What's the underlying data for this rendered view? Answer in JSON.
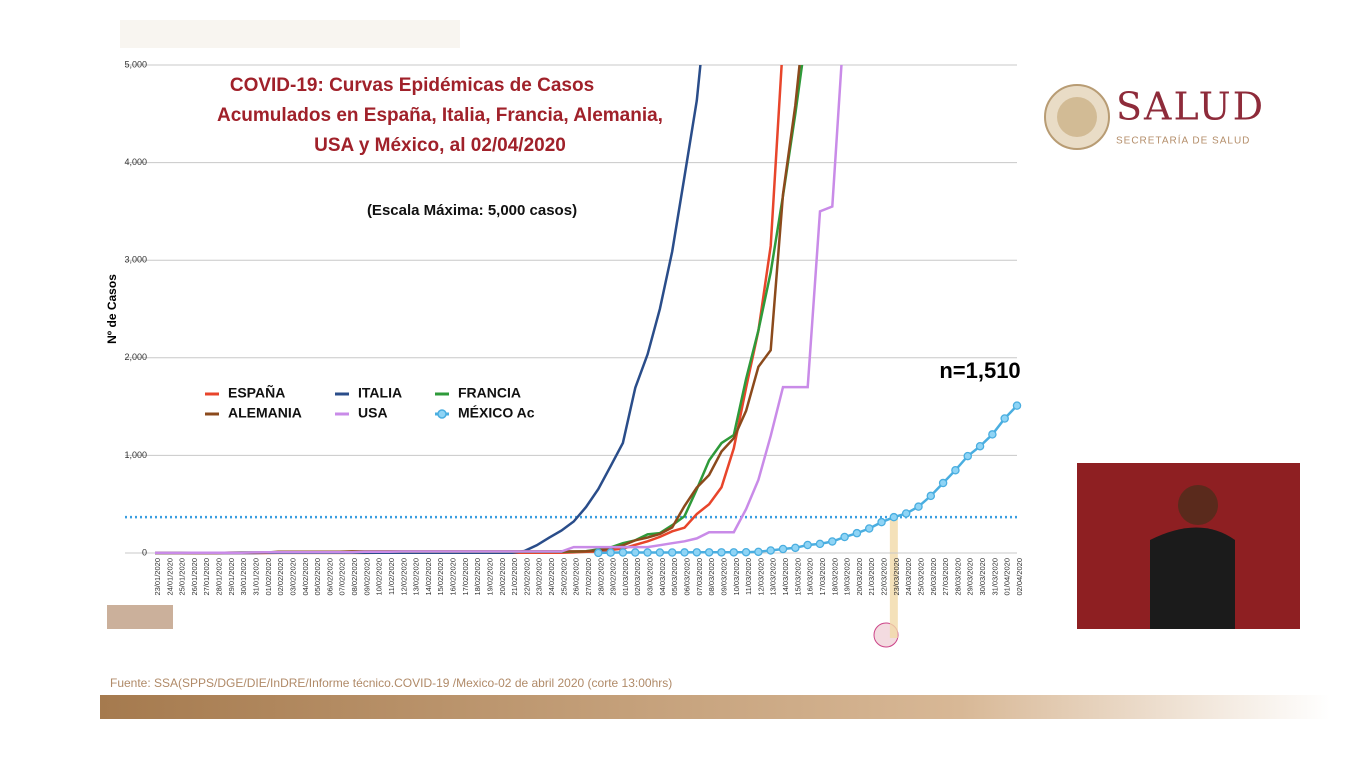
{
  "header": {
    "logo_title": "SALUD",
    "logo_subtitle": "SECRETARÍA DE SALUD"
  },
  "source": "Fuente: SSA(SPPS/DGE/DIE/InDRE/Informe técnico.COVID-19 /Mexico-02 de abril 2020 (corte 13:00hrs)",
  "chart_data": {
    "type": "line",
    "title": [
      "COVID-19: Curvas Epidémicas de Casos",
      "Acumulados en España, Italia, Francia, Alemania,",
      "USA y México, al 02/04/2020"
    ],
    "subtitle": "(Escala Máxima: 5,000 casos)",
    "y_label": "Nº de Casos",
    "annotation": "n=1,510",
    "highlight": "23/03/2020",
    "reference_line": 367,
    "categories": [
      "23/01/2020",
      "24/01/2020",
      "25/01/2020",
      "26/01/2020",
      "27/01/2020",
      "28/01/2020",
      "29/01/2020",
      "30/01/2020",
      "31/01/2020",
      "01/02/2020",
      "02/02/2020",
      "03/02/2020",
      "04/02/2020",
      "05/02/2020",
      "06/02/2020",
      "07/02/2020",
      "08/02/2020",
      "09/02/2020",
      "10/02/2020",
      "11/02/2020",
      "12/02/2020",
      "13/02/2020",
      "14/02/2020",
      "15/02/2020",
      "16/02/2020",
      "17/02/2020",
      "18/02/2020",
      "19/02/2020",
      "20/02/2020",
      "21/02/2020",
      "22/02/2020",
      "23/02/2020",
      "24/02/2020",
      "25/02/2020",
      "26/02/2020",
      "27/02/2020",
      "28/02/2020",
      "29/02/2020",
      "01/03/2020",
      "02/03/2020",
      "03/03/2020",
      "04/03/2020",
      "05/03/2020",
      "06/03/2020",
      "07/03/2020",
      "08/03/2020",
      "09/03/2020",
      "10/03/2020",
      "11/03/2020",
      "12/03/2020",
      "13/03/2020",
      "14/03/2020",
      "15/03/2020",
      "16/03/2020",
      "17/03/2020",
      "18/03/2020",
      "19/03/2020",
      "20/03/2020",
      "21/03/2020",
      "22/03/2020",
      "23/03/2020",
      "24/03/2020",
      "25/03/2020",
      "26/03/2020",
      "27/03/2020",
      "28/03/2020",
      "29/03/2020",
      "30/03/2020",
      "31/03/2020",
      "01/04/2020",
      "02/04/2020"
    ],
    "series": [
      {
        "name": "ESPAÑA",
        "color": "#e8452b",
        "values": [
          0,
          0,
          0,
          0,
          0,
          0,
          0,
          0,
          0,
          0,
          1,
          1,
          1,
          1,
          1,
          1,
          1,
          1,
          2,
          2,
          2,
          2,
          2,
          2,
          2,
          2,
          2,
          2,
          2,
          2,
          2,
          2,
          2,
          3,
          6,
          13,
          15,
          32,
          45,
          84,
          120,
          165,
          222,
          259,
          400,
          500,
          673,
          1073,
          1695,
          2277,
          3146,
          5232,
          null,
          null,
          null,
          null,
          null,
          null,
          null,
          null,
          null,
          null,
          null,
          null,
          null,
          null,
          null,
          null,
          null,
          null,
          null
        ]
      },
      {
        "name": "ITALIA",
        "color": "#2a4d8a",
        "values": [
          0,
          0,
          0,
          0,
          0,
          0,
          0,
          0,
          0,
          2,
          2,
          2,
          2,
          2,
          2,
          3,
          3,
          3,
          3,
          3,
          3,
          3,
          3,
          3,
          3,
          3,
          3,
          3,
          3,
          3,
          20,
          79,
          157,
          229,
          323,
          470,
          655,
          889,
          1128,
          1694,
          2036,
          2502,
          3089,
          3858,
          4636,
          5883,
          null,
          null,
          null,
          null,
          null,
          null,
          null,
          null,
          null,
          null,
          null,
          null,
          null,
          null,
          null,
          null,
          null,
          null,
          null,
          null,
          null,
          null,
          null,
          null,
          null
        ]
      },
      {
        "name": "FRANCIA",
        "color": "#2e9a3a",
        "values": [
          0,
          0,
          3,
          3,
          3,
          3,
          3,
          5,
          5,
          6,
          6,
          6,
          6,
          6,
          6,
          6,
          6,
          12,
          12,
          12,
          12,
          12,
          12,
          12,
          12,
          12,
          12,
          12,
          12,
          12,
          12,
          12,
          12,
          12,
          14,
          18,
          38,
          57,
          100,
          130,
          191,
          204,
          285,
          377,
          653,
          949,
          1126,
          1209,
          1784,
          2281,
          2876,
          3661,
          4499,
          5423,
          null,
          null,
          null,
          null,
          null,
          null,
          null,
          null,
          null,
          null,
          null,
          null,
          null,
          null,
          null,
          null,
          null
        ]
      },
      {
        "name": "ALEMANIA",
        "color": "#8b4a1c",
        "values": [
          0,
          0,
          0,
          0,
          0,
          0,
          4,
          4,
          4,
          4,
          12,
          12,
          12,
          12,
          12,
          12,
          16,
          16,
          16,
          16,
          16,
          16,
          16,
          16,
          16,
          16,
          16,
          16,
          16,
          16,
          16,
          16,
          16,
          16,
          16,
          18,
          26,
          48,
          79,
          130,
          159,
          196,
          262,
          482,
          670,
          799,
          1040,
          1176,
          1457,
          1908,
          2078,
          3675,
          4585,
          5795,
          null,
          null,
          null,
          null,
          null,
          null,
          null,
          null,
          null,
          null,
          null,
          null,
          null,
          null,
          null,
          null,
          null
        ]
      },
      {
        "name": "USA",
        "color": "#c98be8",
        "values": [
          1,
          1,
          1,
          2,
          2,
          2,
          2,
          2,
          6,
          8,
          8,
          8,
          8,
          8,
          8,
          8,
          8,
          12,
          12,
          12,
          15,
          15,
          15,
          15,
          15,
          15,
          15,
          15,
          15,
          15,
          15,
          15,
          15,
          15,
          60,
          60,
          60,
          60,
          60,
          60,
          60,
          80,
          100,
          120,
          150,
          213,
          213,
          213,
          450,
          750,
          1200,
          1700,
          1700,
          1700,
          3500,
          3550,
          5500,
          null,
          null,
          null,
          null,
          null,
          null,
          null,
          null,
          null,
          null,
          null,
          null,
          null,
          null
        ]
      },
      {
        "name": "MÉXICO Ac",
        "color": "#4aaee0",
        "markers": true,
        "values": [
          null,
          null,
          null,
          null,
          null,
          null,
          null,
          null,
          null,
          null,
          null,
          null,
          null,
          null,
          null,
          null,
          null,
          null,
          null,
          null,
          null,
          null,
          null,
          null,
          null,
          null,
          null,
          null,
          null,
          null,
          null,
          null,
          null,
          null,
          null,
          null,
          1,
          4,
          5,
          5,
          5,
          5,
          5,
          6,
          7,
          7,
          7,
          7,
          8,
          12,
          26,
          41,
          53,
          82,
          93,
          118,
          164,
          203,
          251,
          316,
          367,
          405,
          475,
          585,
          717,
          848,
          993,
          1094,
          1215,
          1378,
          1510
        ]
      }
    ],
    "ylim": [
      0,
      5000
    ],
    "yticks": [
      0,
      {
        "value": 1000,
        "label": "1,000"
      },
      {
        "value": 2000,
        "label": "2,000"
      },
      {
        "value": 3000,
        "label": "3,000"
      },
      {
        "value": 4000,
        "label": "4,000"
      },
      {
        "value": 5000,
        "label": "5,000"
      }
    ],
    "grid": true
  }
}
